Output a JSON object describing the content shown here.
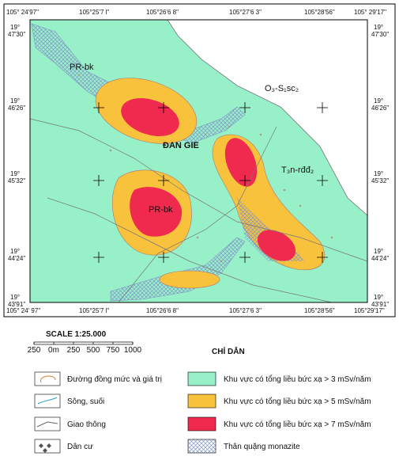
{
  "map": {
    "top_labels": [
      "105° 24'97\"",
      "105°25'7 l\"",
      "105°26'6 8\"",
      "105°27'6 3\"",
      "105°28'56\"",
      "105° 29'17\""
    ],
    "bottom_labels": [
      "105° 24' 97\"",
      "105°25'7 l\"",
      "105°26'6 8\"",
      "105°27'6 3\"",
      "105°28'56\"",
      "105°29'17\""
    ],
    "left_labels": [
      {
        "deg": "19°",
        "min": "47'30\""
      },
      {
        "deg": "19°",
        "min": "46'26\""
      },
      {
        "deg": "19°",
        "min": "45'32\""
      },
      {
        "deg": "19°",
        "min": "44'24\""
      },
      {
        "deg": "19°",
        "min": "43'91\""
      }
    ],
    "right_labels": [
      {
        "deg": "19°",
        "min": "47'30\""
      },
      {
        "deg": "19°",
        "min": "46'26\""
      },
      {
        "deg": "19°",
        "min": "45'32\""
      },
      {
        "deg": "19°",
        "min": "44'24\""
      },
      {
        "deg": "19°",
        "min": "43'91\""
      }
    ],
    "place_labels": [
      "PR-bk",
      "O₃-S₁sc₂",
      "ĐAN GIE",
      "T₃n-rđđ₂",
      "PR-bk"
    ]
  },
  "scale": {
    "title": "SCALE 1:25.000",
    "ticks": [
      "250",
      "0m",
      "250",
      "500",
      "750",
      "1000"
    ]
  },
  "legend": {
    "title": "CHỈ DẪN",
    "items": [
      "Đường đồng mức và giá trị",
      "Sông, suối",
      "Giao thông",
      "Dân cư",
      "Khu vực có tổng liều bức xạ > 3 mSv/năm",
      "Khu vực có tổng liều bức xạ > 5 mSv/năm",
      "Khu vực có tổng liều bức xạ > 7 mSv/năm",
      "Thân quặng monazite"
    ]
  }
}
